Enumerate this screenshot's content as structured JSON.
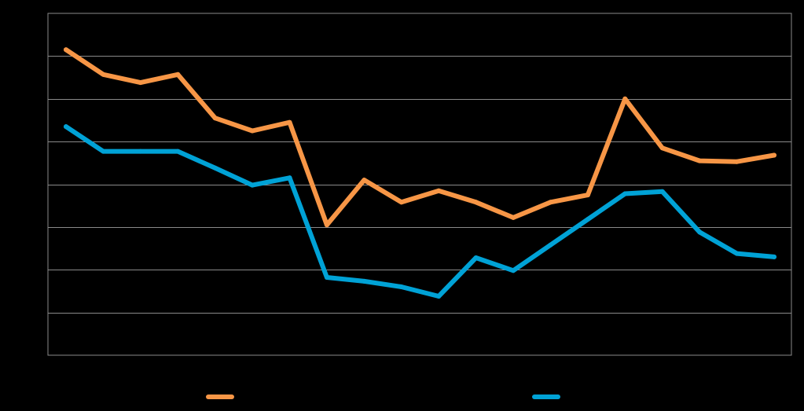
{
  "chart_data": {
    "type": "line",
    "title": "",
    "xlabel": "",
    "ylabel": "",
    "x": [
      1,
      2,
      3,
      4,
      5,
      6,
      7,
      8,
      9,
      10,
      11,
      12,
      13,
      14,
      15,
      16,
      17,
      18,
      19,
      20
    ],
    "ylim": [
      0,
      8
    ],
    "y_gridlines": [
      1,
      2,
      3,
      4,
      5,
      6,
      7
    ],
    "grid": true,
    "legend": "bottom",
    "series": [
      {
        "key": "orange",
        "color": "#F79646",
        "values": [
          7.15,
          6.57,
          6.38,
          6.57,
          5.55,
          5.25,
          5.45,
          3.05,
          4.1,
          3.58,
          3.85,
          3.58,
          3.22,
          3.58,
          3.75,
          6.0,
          4.85,
          4.55,
          4.53,
          4.68
        ]
      },
      {
        "key": "blue",
        "color": "#00A2D6",
        "values": [
          5.35,
          4.77,
          4.77,
          4.77,
          4.38,
          3.98,
          4.15,
          1.82,
          1.73,
          1.6,
          1.38,
          2.28,
          1.98,
          2.58,
          3.18,
          3.78,
          3.83,
          2.88,
          2.38,
          2.3
        ]
      }
    ]
  }
}
